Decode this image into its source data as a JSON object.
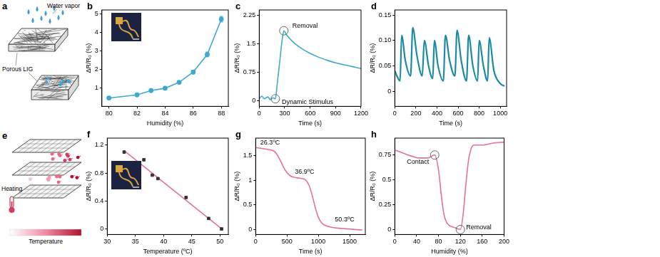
{
  "diagrams": [
    {
      "panel": "a",
      "labels": [
        "Water vapor",
        "Porous LIG"
      ]
    },
    {
      "panel": "e",
      "labels": [
        "Heating",
        "Temperature"
      ]
    }
  ],
  "chart_data": [
    {
      "panel": "b",
      "type": "line",
      "color": "#3fa9cf",
      "marker": "circle",
      "grid": false,
      "x": [
        80,
        82,
        83,
        84,
        85,
        86,
        87,
        88
      ],
      "values": [
        0.45,
        0.62,
        0.85,
        0.98,
        1.3,
        1.85,
        2.8,
        4.7
      ],
      "errors": [
        0.05,
        0.06,
        0.05,
        0.05,
        0.08,
        0.1,
        0.13,
        0.15
      ],
      "xlabel": "Humidity (%)",
      "ylabel": "ΔR/R₀ (%)",
      "xlim": [
        79.5,
        88.5
      ],
      "xticks": [
        80,
        82,
        84,
        86,
        88
      ],
      "ylim": [
        0,
        5.2
      ],
      "yticks": [
        1,
        2,
        3,
        4,
        5
      ]
    },
    {
      "panel": "c",
      "type": "line",
      "color": "#3fa9cf",
      "marker": "none",
      "grid": false,
      "x": [
        0,
        30,
        60,
        100,
        130,
        160,
        190,
        210,
        240,
        270,
        290,
        320,
        400,
        500,
        600,
        700,
        800,
        900,
        1000,
        1100,
        1200
      ],
      "values": [
        0.05,
        0.12,
        0.05,
        0.1,
        0.03,
        0.08,
        0.05,
        0.4,
        1.0,
        1.6,
        1.85,
        1.75,
        1.55,
        1.38,
        1.25,
        1.15,
        1.07,
        1.0,
        0.95,
        0.9,
        0.85
      ],
      "xlabel": "Time (s)",
      "ylabel": "ΔR/R₀ (%)",
      "xlim": [
        0,
        1200
      ],
      "xticks": [
        0,
        300,
        600,
        900,
        1200
      ],
      "ylim": [
        -0.15,
        2.4
      ],
      "yticks": [
        0,
        0.75,
        1.5,
        2.25
      ],
      "annotations": [
        {
          "text": "Removal",
          "x": 290,
          "y": 1.85,
          "marker": "circle"
        },
        {
          "text": "Dynamic Stimulus",
          "x": 190,
          "y": 0.05,
          "marker": "circle"
        }
      ]
    },
    {
      "panel": "d",
      "type": "line",
      "color": "#1a8aa6",
      "marker": "none",
      "grid": false,
      "x": [
        0,
        20,
        50,
        65,
        100,
        150,
        170,
        210,
        260,
        280,
        320,
        360,
        375,
        410,
        460,
        480,
        520,
        570,
        590,
        630,
        680,
        700,
        740,
        785,
        800,
        840,
        880,
        895,
        940,
        1000,
        1040
      ],
      "values": [
        0.04,
        0.03,
        0.02,
        0.11,
        0.06,
        0.03,
        0.125,
        0.07,
        0.03,
        0.1,
        0.05,
        0.025,
        0.1,
        0.05,
        0.02,
        0.11,
        0.06,
        0.03,
        0.12,
        0.06,
        0.02,
        0.11,
        0.05,
        0.02,
        0.1,
        0.05,
        0.02,
        0.105,
        0.04,
        0.015,
        0.01
      ],
      "xlabel": "Time (s)",
      "ylabel": "ΔR/R₀ (%)",
      "xlim": [
        0,
        1060
      ],
      "xticks": [
        0,
        200,
        400,
        600,
        800,
        1000
      ],
      "ylim": [
        -0.03,
        0.16
      ],
      "yticks": [
        0,
        0.05,
        {
          "value": 0.1,
          "label": "0.10"
        },
        0.15
      ]
    },
    {
      "panel": "f",
      "type": "scatter",
      "grid": false,
      "series": [
        {
          "type": "scatter",
          "color": "#333333",
          "marker": "square",
          "x": [
            33,
            36.5,
            38,
            39,
            44,
            48,
            50.3
          ],
          "values": [
            1.1,
            0.99,
            0.77,
            0.72,
            0.45,
            0.15,
            0.0
          ]
        },
        {
          "type": "line",
          "color": "#e8709a",
          "marker": "none",
          "x": [
            33,
            50.5
          ],
          "values": [
            1.12,
            -0.01
          ]
        }
      ],
      "xlabel": "Temperature (ºC)",
      "ylabel": "ΔR/R₀ (%)",
      "xlim": [
        30,
        51.5
      ],
      "xticks": [
        30,
        35,
        40,
        45,
        50
      ],
      "ylim": [
        -0.08,
        1.3
      ],
      "yticks": [
        0,
        0.4,
        0.8,
        1.2
      ]
    },
    {
      "panel": "g",
      "type": "line",
      "color": "#e8709a",
      "marker": "none",
      "grid": false,
      "x": [
        0,
        100,
        200,
        300,
        350,
        400,
        450,
        500,
        550,
        600,
        700,
        750,
        800,
        850,
        900,
        950,
        1000,
        1050,
        1100,
        1200,
        1300,
        1400,
        1500,
        1600,
        1700
      ],
      "values": [
        1.66,
        1.64,
        1.62,
        1.58,
        1.5,
        1.38,
        1.25,
        1.15,
        1.09,
        1.06,
        1.04,
        1.03,
        1.0,
        0.9,
        0.7,
        0.45,
        0.25,
        0.14,
        0.09,
        0.05,
        0.03,
        0.02,
        0.01,
        0.0,
        -0.01
      ],
      "xlabel": "Time (s)",
      "ylabel": "ΔR/R₀ (%)",
      "xlim": [
        0,
        1750
      ],
      "xticks": [
        0,
        500,
        1000,
        1500
      ],
      "ylim": [
        -0.1,
        1.85
      ],
      "yticks": [
        0,
        0.5,
        1,
        1.5
      ],
      "annotations": [
        {
          "text": "26.3ºC",
          "x": 230,
          "y": 1.76
        },
        {
          "text": "36.9ºC",
          "x": 780,
          "y": 1.17
        },
        {
          "text": "50.3ºC",
          "x": 1420,
          "y": 0.2
        }
      ]
    },
    {
      "panel": "h",
      "type": "line",
      "color": "#e8709a",
      "marker": "none",
      "grid": false,
      "x": [
        0,
        15,
        30,
        45,
        60,
        73,
        80,
        85,
        90,
        95,
        100,
        110,
        120,
        125,
        130,
        135,
        140,
        145,
        150,
        160,
        180,
        200
      ],
      "values": [
        0.8,
        0.77,
        0.74,
        0.72,
        0.72,
        0.75,
        0.6,
        0.35,
        0.15,
        0.07,
        0.04,
        0.02,
        0.0,
        0.15,
        0.45,
        0.7,
        0.82,
        0.85,
        0.85,
        0.85,
        0.87,
        0.88
      ],
      "xlabel": "Humidity (%)",
      "ylabel": "ΔR/R₀ (%)",
      "xlim": [
        0,
        200
      ],
      "xticks": [
        0,
        40,
        80,
        120,
        160,
        200
      ],
      "ylim": [
        -0.05,
        0.92
      ],
      "yticks": [
        0,
        0.25,
        0.5,
        0.75
      ],
      "annotations": [
        {
          "text": "Contact",
          "x": 73,
          "y": 0.75,
          "marker": "circle"
        },
        {
          "text": "Removal",
          "x": 120,
          "y": 0.0,
          "marker": "circle"
        }
      ]
    }
  ]
}
